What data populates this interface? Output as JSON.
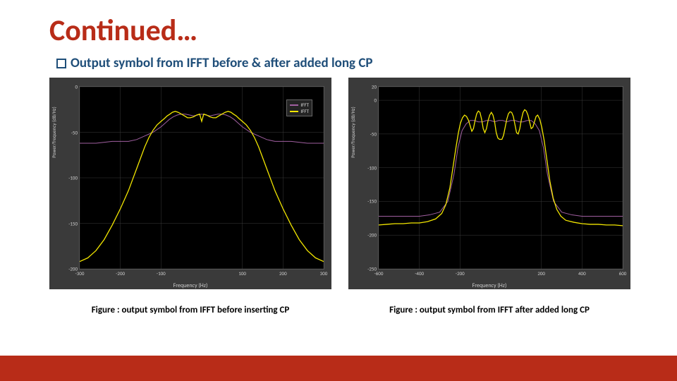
{
  "title": "Continued…",
  "bullet": {
    "icon": "square-outline-icon",
    "label": "Output symbol from IFFT before & after added long CP"
  },
  "colors": {
    "title": "#b82c18",
    "subtitle": "#1f4e79",
    "chart_outer_bg": "#3a3a3a",
    "plot_bg": "#000000",
    "grid": "#3a3a3a",
    "series_ref": "#a05fa0",
    "series_signal": "#f2e600",
    "footer": "#b82c18",
    "tick_text": "#cccccc"
  },
  "footer": {
    "height": 36
  },
  "chart_left": {
    "type": "line",
    "caption": "Figure : output symbol from IFFT before inserting CP",
    "xlabel": "Frequency (Hz)",
    "ylabel": "Power/frequency (dB/Hz)",
    "xlim": [
      -300,
      300
    ],
    "ylim": [
      -200,
      0
    ],
    "xticks": [
      -300,
      -200,
      -100,
      100,
      200,
      300
    ],
    "yticks": [
      0,
      -50,
      -100,
      -150,
      -200
    ],
    "legend": [
      {
        "label": "IFFT",
        "color": "#a05fa0"
      },
      {
        "label": "IFFT",
        "color": "#f2e600"
      }
    ],
    "series": [
      {
        "name": "ref",
        "color": "#a05fa0",
        "width": 1,
        "points": [
          [
            -300,
            -62
          ],
          [
            -260,
            -62
          ],
          [
            -220,
            -60
          ],
          [
            -180,
            -60
          ],
          [
            -160,
            -58
          ],
          [
            -140,
            -54
          ],
          [
            -120,
            -50
          ],
          [
            -100,
            -44
          ],
          [
            -90,
            -40
          ],
          [
            -80,
            -36
          ],
          [
            -70,
            -33
          ],
          [
            -60,
            -31
          ],
          [
            -50,
            -30
          ],
          [
            -40,
            -30
          ],
          [
            -30,
            -31
          ],
          [
            -20,
            -32
          ],
          [
            -10,
            -31
          ],
          [
            0,
            -30
          ],
          [
            10,
            -31
          ],
          [
            20,
            -32
          ],
          [
            30,
            -31
          ],
          [
            40,
            -30
          ],
          [
            50,
            -30
          ],
          [
            60,
            -31
          ],
          [
            70,
            -33
          ],
          [
            80,
            -36
          ],
          [
            90,
            -40
          ],
          [
            100,
            -44
          ],
          [
            120,
            -50
          ],
          [
            140,
            -54
          ],
          [
            160,
            -58
          ],
          [
            180,
            -60
          ],
          [
            220,
            -60
          ],
          [
            260,
            -62
          ],
          [
            300,
            -62
          ]
        ]
      },
      {
        "name": "signal",
        "color": "#f2e600",
        "width": 1.3,
        "points": [
          [
            -300,
            -192
          ],
          [
            -280,
            -188
          ],
          [
            -260,
            -180
          ],
          [
            -240,
            -168
          ],
          [
            -220,
            -152
          ],
          [
            -200,
            -134
          ],
          [
            -190,
            -124
          ],
          [
            -180,
            -114
          ],
          [
            -170,
            -102
          ],
          [
            -160,
            -90
          ],
          [
            -150,
            -78
          ],
          [
            -140,
            -66
          ],
          [
            -130,
            -56
          ],
          [
            -120,
            -48
          ],
          [
            -110,
            -42
          ],
          [
            -100,
            -38
          ],
          [
            -92,
            -35
          ],
          [
            -85,
            -32
          ],
          [
            -78,
            -30
          ],
          [
            -72,
            -28
          ],
          [
            -65,
            -27
          ],
          [
            -58,
            -28
          ],
          [
            -50,
            -30
          ],
          [
            -42,
            -32
          ],
          [
            -35,
            -34
          ],
          [
            -28,
            -34
          ],
          [
            -20,
            -33
          ],
          [
            -12,
            -31
          ],
          [
            -5,
            -30
          ],
          [
            0,
            -38
          ],
          [
            5,
            -30
          ],
          [
            12,
            -31
          ],
          [
            20,
            -33
          ],
          [
            28,
            -34
          ],
          [
            35,
            -34
          ],
          [
            42,
            -32
          ],
          [
            50,
            -30
          ],
          [
            58,
            -28
          ],
          [
            65,
            -27
          ],
          [
            72,
            -28
          ],
          [
            78,
            -30
          ],
          [
            85,
            -32
          ],
          [
            92,
            -35
          ],
          [
            100,
            -38
          ],
          [
            110,
            -42
          ],
          [
            120,
            -48
          ],
          [
            130,
            -56
          ],
          [
            140,
            -66
          ],
          [
            150,
            -78
          ],
          [
            160,
            -90
          ],
          [
            170,
            -102
          ],
          [
            180,
            -114
          ],
          [
            190,
            -124
          ],
          [
            200,
            -134
          ],
          [
            220,
            -152
          ],
          [
            240,
            -168
          ],
          [
            260,
            -180
          ],
          [
            280,
            -188
          ],
          [
            300,
            -192
          ]
        ]
      }
    ]
  },
  "chart_right": {
    "type": "line",
    "caption": "Figure : output symbol from IFFT after added long CP",
    "xlabel": "Frequency (Hz)",
    "ylabel": "Power/frequency (dB/Hz)",
    "xlim": [
      -600,
      600
    ],
    "ylim": [
      -250,
      20
    ],
    "xticks": [
      -600,
      -400,
      -200,
      200,
      400,
      600
    ],
    "yticks": [
      20,
      0,
      -50,
      -100,
      -150,
      -200,
      -250
    ],
    "legend": [],
    "series": [
      {
        "name": "ref",
        "color": "#a05fa0",
        "width": 1,
        "points": [
          [
            -600,
            -172
          ],
          [
            -550,
            -172
          ],
          [
            -500,
            -172
          ],
          [
            -450,
            -172
          ],
          [
            -400,
            -172
          ],
          [
            -350,
            -170
          ],
          [
            -300,
            -166
          ],
          [
            -260,
            -150
          ],
          [
            -230,
            -110
          ],
          [
            -210,
            -70
          ],
          [
            -190,
            -45
          ],
          [
            -170,
            -35
          ],
          [
            -150,
            -30
          ],
          [
            -130,
            -30
          ],
          [
            -110,
            -32
          ],
          [
            -90,
            -32
          ],
          [
            -70,
            -30
          ],
          [
            -50,
            -30
          ],
          [
            -30,
            -32
          ],
          [
            -10,
            -30
          ],
          [
            10,
            -30
          ],
          [
            30,
            -32
          ],
          [
            50,
            -30
          ],
          [
            70,
            -30
          ],
          [
            90,
            -32
          ],
          [
            110,
            -32
          ],
          [
            130,
            -30
          ],
          [
            150,
            -30
          ],
          [
            170,
            -35
          ],
          [
            190,
            -45
          ],
          [
            210,
            -70
          ],
          [
            230,
            -110
          ],
          [
            260,
            -150
          ],
          [
            300,
            -166
          ],
          [
            350,
            -170
          ],
          [
            400,
            -172
          ],
          [
            450,
            -172
          ],
          [
            500,
            -172
          ],
          [
            550,
            -172
          ],
          [
            600,
            -172
          ]
        ]
      },
      {
        "name": "signal",
        "color": "#f2e600",
        "width": 1.3,
        "points": [
          [
            -600,
            -185
          ],
          [
            -560,
            -184
          ],
          [
            -520,
            -183
          ],
          [
            -480,
            -183
          ],
          [
            -440,
            -182
          ],
          [
            -400,
            -182
          ],
          [
            -360,
            -180
          ],
          [
            -320,
            -176
          ],
          [
            -290,
            -168
          ],
          [
            -270,
            -155
          ],
          [
            -250,
            -130
          ],
          [
            -235,
            -100
          ],
          [
            -220,
            -70
          ],
          [
            -208,
            -48
          ],
          [
            -198,
            -34
          ],
          [
            -188,
            -26
          ],
          [
            -178,
            -22
          ],
          [
            -168,
            -24
          ],
          [
            -158,
            -30
          ],
          [
            -150,
            -38
          ],
          [
            -142,
            -46
          ],
          [
            -134,
            -42
          ],
          [
            -126,
            -30
          ],
          [
            -118,
            -20
          ],
          [
            -110,
            -16
          ],
          [
            -102,
            -18
          ],
          [
            -94,
            -28
          ],
          [
            -86,
            -42
          ],
          [
            -78,
            -48
          ],
          [
            -70,
            -42
          ],
          [
            -62,
            -30
          ],
          [
            -54,
            -22
          ],
          [
            -46,
            -18
          ],
          [
            -38,
            -22
          ],
          [
            -30,
            -32
          ],
          [
            -22,
            -48
          ],
          [
            -14,
            -56
          ],
          [
            -6,
            -58
          ],
          [
            0,
            -58
          ],
          [
            6,
            -58
          ],
          [
            14,
            -52
          ],
          [
            22,
            -40
          ],
          [
            30,
            -28
          ],
          [
            38,
            -20
          ],
          [
            46,
            -17
          ],
          [
            54,
            -18
          ],
          [
            62,
            -24
          ],
          [
            70,
            -36
          ],
          [
            78,
            -48
          ],
          [
            86,
            -50
          ],
          [
            94,
            -42
          ],
          [
            102,
            -28
          ],
          [
            110,
            -18
          ],
          [
            118,
            -14
          ],
          [
            126,
            -16
          ],
          [
            134,
            -22
          ],
          [
            142,
            -32
          ],
          [
            150,
            -42
          ],
          [
            158,
            -40
          ],
          [
            166,
            -32
          ],
          [
            174,
            -24
          ],
          [
            182,
            -22
          ],
          [
            192,
            -28
          ],
          [
            202,
            -40
          ],
          [
            214,
            -60
          ],
          [
            228,
            -90
          ],
          [
            242,
            -120
          ],
          [
            258,
            -145
          ],
          [
            276,
            -162
          ],
          [
            296,
            -172
          ],
          [
            320,
            -178
          ],
          [
            360,
            -181
          ],
          [
            400,
            -183
          ],
          [
            440,
            -184
          ],
          [
            480,
            -184
          ],
          [
            520,
            -185
          ],
          [
            560,
            -185
          ],
          [
            600,
            -186
          ]
        ]
      }
    ]
  }
}
